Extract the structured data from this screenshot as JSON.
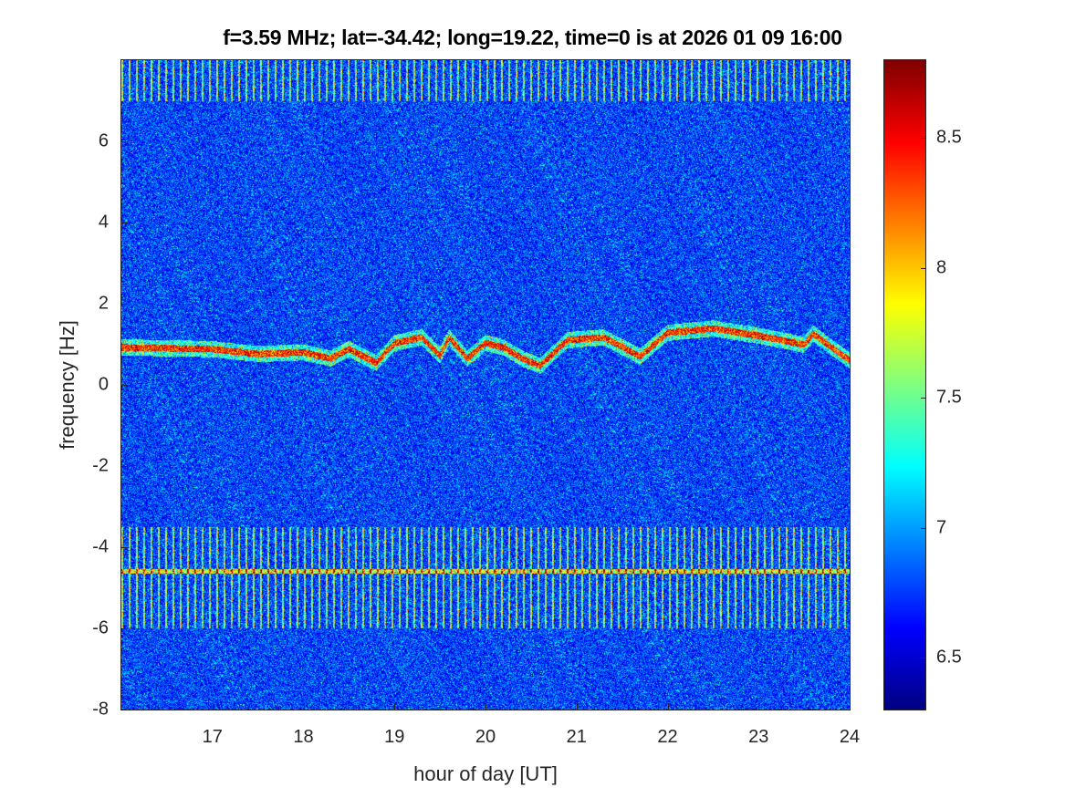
{
  "chart_data": {
    "type": "heatmap",
    "title": "f=3.59 MHz;  lat=-34.42; long=19.22, time=0 is at 2026 01 09 16:00",
    "xlabel": "hour of day [UT]",
    "ylabel": "frequency [Hz]",
    "xlim": [
      16,
      24
    ],
    "ylim": [
      -8,
      8
    ],
    "xticks": [
      "17",
      "18",
      "19",
      "20",
      "21",
      "22",
      "23",
      "24"
    ],
    "yticks": [
      "-8",
      "-6",
      "-4",
      "-2",
      "0",
      "2",
      "4",
      "6"
    ],
    "colorbar": {
      "colormap": "jet",
      "clim": [
        6.3,
        8.8
      ],
      "ticks": [
        "6.5",
        "7",
        "7.5",
        "8",
        "8.5"
      ]
    },
    "doppler_trace": {
      "hour": [
        16.07,
        17.0,
        17.5,
        18.0,
        18.3,
        18.5,
        18.8,
        19.0,
        19.3,
        19.5,
        19.6,
        19.8,
        20.0,
        20.2,
        20.4,
        20.6,
        20.9,
        21.3,
        21.7,
        22.0,
        22.5,
        23.0,
        23.5,
        23.6,
        24.0
      ],
      "frequency_hz": [
        0.92,
        0.88,
        0.76,
        0.8,
        0.65,
        0.88,
        0.54,
        1.03,
        1.17,
        0.72,
        1.17,
        0.65,
        1.03,
        0.92,
        0.65,
        0.47,
        1.1,
        1.17,
        0.7,
        1.28,
        1.39,
        1.21,
        0.99,
        1.26,
        0.6
      ]
    },
    "interference_line_hz": -4.6,
    "periodic_stripe_bands_hz": [
      [
        7.0,
        8.0
      ],
      [
        -6.0,
        -3.5
      ]
    ],
    "background_level": 6.7
  }
}
